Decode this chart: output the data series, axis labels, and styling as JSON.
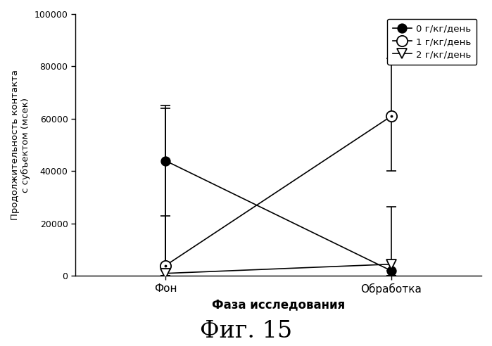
{
  "title": "Фиг. 15",
  "xlabel": "Фаза исследования",
  "ylabel": "Продолжительность контакта\nс субъектом (мсек)",
  "xtick_labels": [
    "Фон",
    "Обработка"
  ],
  "ylim": [
    0,
    100000
  ],
  "yticks": [
    0,
    20000,
    40000,
    60000,
    80000,
    100000
  ],
  "series": [
    {
      "label": "0 г/кг/день",
      "x": [
        0,
        1
      ],
      "y": [
        44000,
        2000
      ],
      "yerr_lower": [
        44000,
        2000
      ],
      "yerr_upper": [
        21000,
        0
      ],
      "marker": "o",
      "marker_fill": "black"
    },
    {
      "label": "1 г/кг/день",
      "x": [
        0,
        1
      ],
      "y": [
        4000,
        61000
      ],
      "yerr_lower": [
        4000,
        21000
      ],
      "yerr_upper": [
        60000,
        22000
      ],
      "marker": "o",
      "marker_fill": "white"
    },
    {
      "label": "2 г/кг/день",
      "x": [
        0,
        1
      ],
      "y": [
        1000,
        4500
      ],
      "yerr_lower": [
        1000,
        4500
      ],
      "yerr_upper": [
        22000,
        22000
      ],
      "marker": "v",
      "marker_fill": "white"
    }
  ],
  "background_color": "#ffffff",
  "fig_width": 6.99,
  "fig_height": 4.92,
  "dpi": 100
}
